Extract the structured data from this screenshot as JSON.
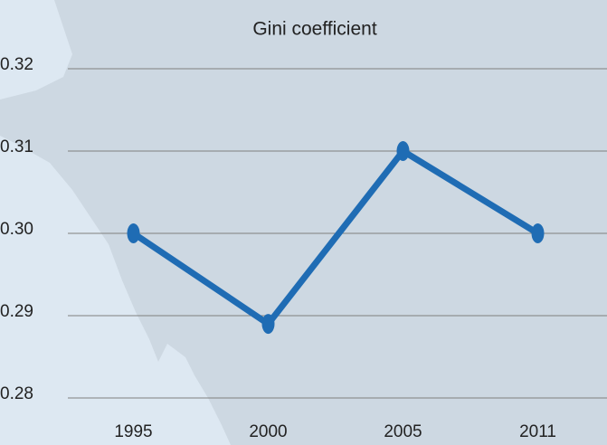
{
  "chart_data": {
    "type": "line",
    "title": "Gini coefficient",
    "categories": [
      "1995",
      "2000",
      "2005",
      "2011"
    ],
    "series": [
      {
        "values": [
          0.3,
          0.289,
          0.31,
          0.3
        ],
        "color": "#1f6cb4"
      }
    ],
    "ylim": [
      0.28,
      0.32
    ],
    "yticks": [
      0.28,
      0.29,
      {
        "value": 0.3,
        "label": "0.30"
      },
      0.31,
      0.32
    ],
    "grid": true
  }
}
